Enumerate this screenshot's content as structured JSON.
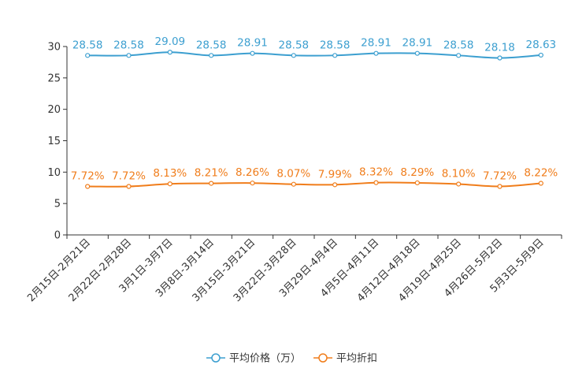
{
  "chart_data": {
    "type": "line",
    "title": "",
    "xlabel": "",
    "ylabel": "",
    "ylim": [
      0,
      30
    ],
    "yticks": [
      0,
      5,
      10,
      15,
      20,
      25,
      30
    ],
    "grid": false,
    "legend_position": "bottom-center",
    "categories": [
      "2月15日-2月21日",
      "2月22日-2月28日",
      "3月1日-3月7日",
      "3月8日-3月14日",
      "3月15日-3月21日",
      "3月22日-3月28日",
      "3月29日-4月4日",
      "4月5日-4月11日",
      "4月12日-4月18日",
      "4月19日-4月25日",
      "4月26日-5月2日",
      "5月3日-5月9日"
    ],
    "series": [
      {
        "name": "平均价格（万）",
        "color": "#3c9fd0",
        "values": [
          28.58,
          28.58,
          29.09,
          28.58,
          28.91,
          28.58,
          28.58,
          28.91,
          28.91,
          28.58,
          28.18,
          28.63
        ],
        "labels": [
          "28.58",
          "28.58",
          "29.09",
          "28.58",
          "28.91",
          "28.58",
          "28.58",
          "28.91",
          "28.91",
          "28.58",
          "28.18",
          "28.63"
        ]
      },
      {
        "name": "平均折扣",
        "color": "#f07d1b",
        "values": [
          7.72,
          7.72,
          8.13,
          8.21,
          8.26,
          8.07,
          7.99,
          8.32,
          8.29,
          8.1,
          7.72,
          8.22
        ],
        "labels": [
          "7.72%",
          "7.72%",
          "8.13%",
          "8.21%",
          "8.26%",
          "8.07%",
          "7.99%",
          "8.32%",
          "8.29%",
          "8.10%",
          "7.72%",
          "8.22%"
        ]
      }
    ]
  }
}
